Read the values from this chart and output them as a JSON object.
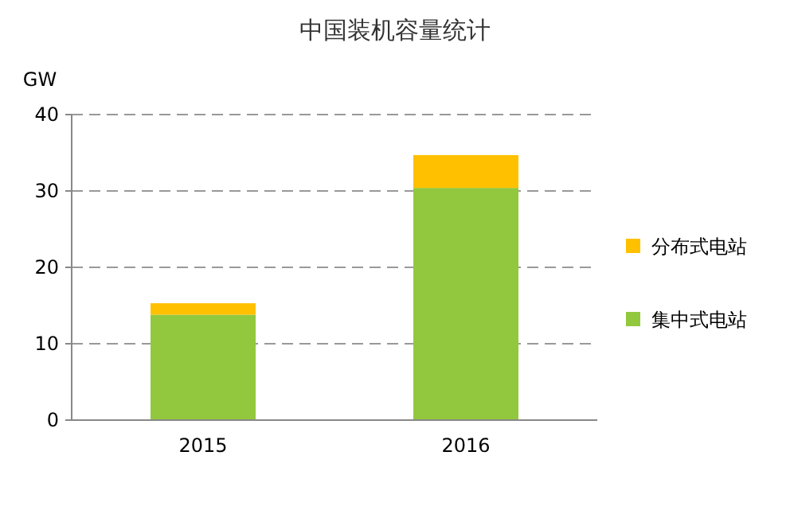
{
  "chart_data": {
    "type": "bar",
    "title": "中国装机容量统计",
    "ylabel": "GW",
    "categories": [
      "2015",
      "2016"
    ],
    "series": [
      {
        "name": "集中式电站",
        "color": "#92c83e",
        "values": [
          13.8,
          30.4
        ]
      },
      {
        "name": "分布式电站",
        "color": "#ffc000",
        "values": [
          1.5,
          4.3
        ]
      }
    ],
    "stacked": true,
    "ylim": [
      0,
      40
    ],
    "yticks": [
      0,
      10,
      20,
      30,
      40
    ],
    "grid": "y",
    "legend": "right"
  }
}
